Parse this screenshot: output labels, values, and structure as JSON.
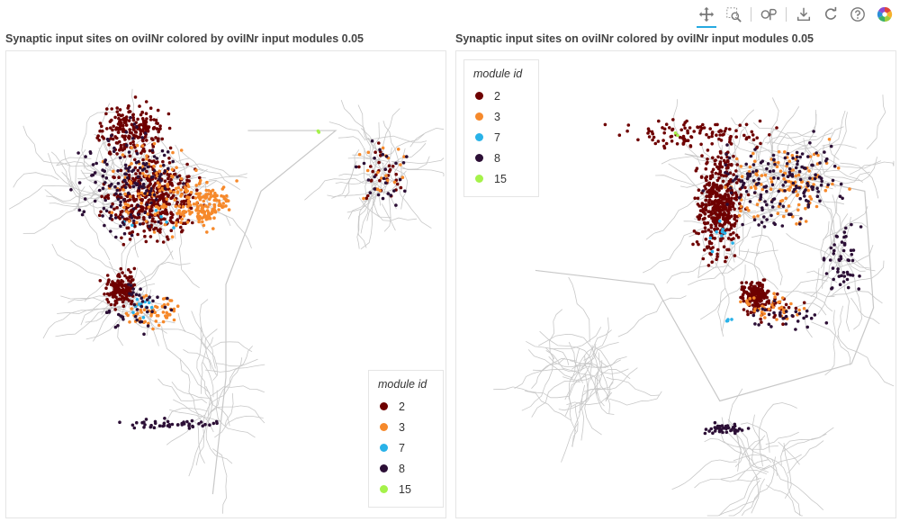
{
  "toolbar": {
    "tools": [
      {
        "name": "pan-tool",
        "icon": "move-icon",
        "active": true
      },
      {
        "name": "box-zoom-tool",
        "icon": "box-zoom-icon",
        "active": false
      },
      {
        "name": "wheel-zoom-tool",
        "icon": "wheel-zoom-icon",
        "active": false
      },
      {
        "name": "save-tool",
        "icon": "download-icon",
        "active": false
      },
      {
        "name": "reset-tool",
        "icon": "reset-icon",
        "active": false
      },
      {
        "name": "help-tool",
        "icon": "help-icon",
        "active": false
      },
      {
        "name": "bokeh-logo",
        "icon": "bokeh-logo",
        "active": false
      }
    ]
  },
  "chart_data": [
    {
      "type": "scatter",
      "title": "Synaptic input sites on oviINr colored by oviINr input modules 0.05",
      "legend": {
        "title": "module id",
        "placement": "bottom-right",
        "entries": [
          {
            "label": "2",
            "color": "#6e0000"
          },
          {
            "label": "3",
            "color": "#f6892b"
          },
          {
            "label": "7",
            "color": "#29b2e8"
          },
          {
            "label": "8",
            "color": "#2c0f36"
          },
          {
            "label": "15",
            "color": "#a5f24a"
          }
        ]
      },
      "axes_visible": false,
      "grid": false,
      "background_skeleton_color": "#c8c8c8",
      "clusters": [
        {
          "module": "2",
          "cx": 0.33,
          "cy": 0.32,
          "rx": 0.14,
          "ry": 0.12,
          "n": 420
        },
        {
          "module": "2",
          "cx": 0.29,
          "cy": 0.17,
          "rx": 0.11,
          "ry": 0.08,
          "n": 220
        },
        {
          "module": "2",
          "cx": 0.26,
          "cy": 0.51,
          "rx": 0.05,
          "ry": 0.05,
          "n": 140
        },
        {
          "module": "2",
          "cx": 0.86,
          "cy": 0.27,
          "rx": 0.08,
          "ry": 0.09,
          "n": 30
        },
        {
          "module": "3",
          "cx": 0.45,
          "cy": 0.33,
          "rx": 0.09,
          "ry": 0.07,
          "n": 160
        },
        {
          "module": "3",
          "cx": 0.34,
          "cy": 0.29,
          "rx": 0.14,
          "ry": 0.13,
          "n": 100
        },
        {
          "module": "3",
          "cx": 0.33,
          "cy": 0.56,
          "rx": 0.09,
          "ry": 0.05,
          "n": 60
        },
        {
          "module": "3",
          "cx": 0.86,
          "cy": 0.26,
          "rx": 0.08,
          "ry": 0.09,
          "n": 18
        },
        {
          "module": "7",
          "cx": 0.31,
          "cy": 0.55,
          "rx": 0.05,
          "ry": 0.04,
          "n": 12
        },
        {
          "module": "7",
          "cx": 0.33,
          "cy": 0.37,
          "rx": 0.08,
          "ry": 0.06,
          "n": 6
        },
        {
          "module": "8",
          "cx": 0.28,
          "cy": 0.28,
          "rx": 0.17,
          "ry": 0.15,
          "n": 150
        },
        {
          "module": "8",
          "cx": 0.3,
          "cy": 0.55,
          "rx": 0.11,
          "ry": 0.07,
          "n": 40
        },
        {
          "module": "8",
          "cx": 0.37,
          "cy": 0.8,
          "rx": 0.16,
          "ry": 0.015,
          "n": 45
        },
        {
          "module": "8",
          "cx": 0.86,
          "cy": 0.28,
          "rx": 0.09,
          "ry": 0.1,
          "n": 25
        },
        {
          "module": "15",
          "cx": 0.71,
          "cy": 0.17,
          "rx": 0.01,
          "ry": 0.01,
          "n": 2
        }
      ]
    },
    {
      "type": "scatter",
      "title": "Synaptic input sites on oviINr colored by oviINr input modules 0.05",
      "legend": {
        "title": "module id",
        "placement": "top-left",
        "entries": [
          {
            "label": "2",
            "color": "#6e0000"
          },
          {
            "label": "3",
            "color": "#f6892b"
          },
          {
            "label": "7",
            "color": "#29b2e8"
          },
          {
            "label": "8",
            "color": "#2c0f36"
          },
          {
            "label": "15",
            "color": "#a5f24a"
          }
        ]
      },
      "axes_visible": false,
      "grid": false,
      "background_skeleton_color": "#c8c8c8",
      "clusters": [
        {
          "module": "2",
          "cx": 0.6,
          "cy": 0.33,
          "rx": 0.07,
          "ry": 0.15,
          "n": 420
        },
        {
          "module": "2",
          "cx": 0.68,
          "cy": 0.52,
          "rx": 0.04,
          "ry": 0.04,
          "n": 160
        },
        {
          "module": "2",
          "cx": 0.55,
          "cy": 0.18,
          "rx": 0.25,
          "ry": 0.05,
          "n": 110
        },
        {
          "module": "2",
          "cx": 0.72,
          "cy": 0.55,
          "rx": 0.1,
          "ry": 0.04,
          "n": 50
        },
        {
          "module": "3",
          "cx": 0.75,
          "cy": 0.28,
          "rx": 0.18,
          "ry": 0.12,
          "n": 120
        },
        {
          "module": "3",
          "cx": 0.72,
          "cy": 0.55,
          "rx": 0.1,
          "ry": 0.04,
          "n": 40
        },
        {
          "module": "7",
          "cx": 0.6,
          "cy": 0.38,
          "rx": 0.04,
          "ry": 0.08,
          "n": 10
        },
        {
          "module": "7",
          "cx": 0.62,
          "cy": 0.58,
          "rx": 0.02,
          "ry": 0.02,
          "n": 4
        },
        {
          "module": "8",
          "cx": 0.75,
          "cy": 0.28,
          "rx": 0.2,
          "ry": 0.12,
          "n": 160
        },
        {
          "module": "8",
          "cx": 0.88,
          "cy": 0.45,
          "rx": 0.06,
          "ry": 0.12,
          "n": 50
        },
        {
          "module": "8",
          "cx": 0.62,
          "cy": 0.81,
          "rx": 0.07,
          "ry": 0.015,
          "n": 45
        },
        {
          "module": "8",
          "cx": 0.75,
          "cy": 0.57,
          "rx": 0.12,
          "ry": 0.05,
          "n": 30
        },
        {
          "module": "15",
          "cx": 0.5,
          "cy": 0.18,
          "rx": 0.01,
          "ry": 0.01,
          "n": 2
        }
      ]
    }
  ]
}
